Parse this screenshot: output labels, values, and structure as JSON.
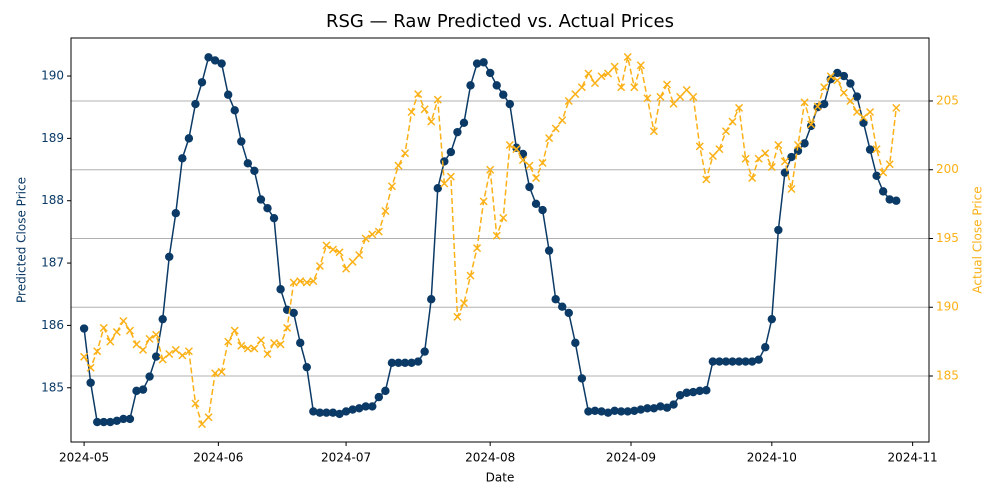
{
  "chart_data": {
    "type": "line",
    "title": "RSG — Raw Predicted vs. Actual Prices",
    "xlabel": "Date",
    "ylabel": "Predicted Close Price",
    "y2label": "Actual Close Price",
    "xlim": [
      -2,
      129
    ],
    "xticks": [
      {
        "value": 0,
        "label": "2024-05"
      },
      {
        "value": 20.5,
        "label": "2024-06"
      },
      {
        "value": 40,
        "label": "2024-07"
      },
      {
        "value": 62,
        "label": "2024-08"
      },
      {
        "value": 83.5,
        "label": "2024-09"
      },
      {
        "value": 105,
        "label": "2024-10"
      },
      {
        "value": 126.5,
        "label": "2024-11"
      }
    ],
    "ylim": [
      184.13,
      190.61
    ],
    "yticks": [
      185,
      186,
      187,
      188,
      189,
      190
    ],
    "y2lim": [
      180.2,
      209.58
    ],
    "y2ticks": [
      185,
      190,
      195,
      200,
      205
    ],
    "grid": "y2",
    "series": [
      {
        "name": "Predicted",
        "color": "#0b3a66",
        "axis": "y",
        "marker": "circle",
        "dash": false,
        "values": [
          185.95,
          185.08,
          184.45,
          184.45,
          184.45,
          184.47,
          184.5,
          184.5,
          184.95,
          184.97,
          185.18,
          185.5,
          186.1,
          187.1,
          187.8,
          188.68,
          189.0,
          189.55,
          189.9,
          190.3,
          190.25,
          190.2,
          189.7,
          189.45,
          188.95,
          188.6,
          188.48,
          188.02,
          187.88,
          187.72,
          186.58,
          186.25,
          186.2,
          185.72,
          185.33,
          184.62,
          184.6,
          184.6,
          184.6,
          184.58,
          184.62,
          184.65,
          184.67,
          184.7,
          184.7,
          184.85,
          184.95,
          185.4,
          185.4,
          185.4,
          185.4,
          185.42,
          185.58,
          186.42,
          188.2,
          188.63,
          188.78,
          189.1,
          189.25,
          189.85,
          190.2,
          190.22,
          190.05,
          189.85,
          189.7,
          189.55,
          188.85,
          188.75,
          188.22,
          187.95,
          187.85,
          187.2,
          186.42,
          186.3,
          186.2,
          185.72,
          185.15,
          184.62,
          184.63,
          184.62,
          184.6,
          184.63,
          184.62,
          184.62,
          184.63,
          184.65,
          184.67,
          184.67,
          184.7,
          184.68,
          184.73,
          184.88,
          184.92,
          184.93,
          184.95,
          184.96,
          185.42,
          185.42,
          185.42,
          185.42,
          185.42,
          185.42,
          185.42,
          185.45,
          185.65,
          186.1,
          187.53,
          188.45,
          188.7,
          188.8,
          188.92,
          189.2,
          189.5,
          189.55,
          189.95,
          190.05,
          190.0,
          189.88,
          189.67,
          189.25,
          188.82,
          188.4,
          188.15,
          188.02,
          188.0
        ]
      },
      {
        "name": "Actual",
        "color": "#fbb117",
        "axis": "y2",
        "marker": "x",
        "dash": true,
        "values": [
          186.4,
          185.6,
          186.8,
          188.5,
          187.5,
          188.2,
          189.0,
          188.3,
          187.3,
          186.9,
          187.7,
          188.0,
          186.2,
          186.6,
          186.9,
          186.5,
          186.8,
          183.0,
          181.5,
          182.0,
          185.2,
          185.3,
          187.5,
          188.3,
          187.2,
          187.0,
          187.0,
          187.6,
          186.6,
          187.4,
          187.3,
          188.5,
          191.8,
          191.9,
          191.8,
          191.9,
          193.0,
          194.5,
          194.2,
          194.0,
          192.8,
          193.3,
          193.8,
          195.0,
          195.3,
          195.5,
          197.0,
          198.8,
          200.3,
          201.2,
          204.2,
          205.5,
          204.4,
          203.5,
          205.1,
          199.0,
          199.5,
          189.3,
          190.3,
          192.3,
          194.3,
          197.7,
          200.0,
          195.2,
          196.5,
          201.8,
          201.5,
          200.7,
          200.3,
          199.4,
          200.5,
          202.3,
          203.0,
          203.6,
          205.0,
          205.5,
          206.0,
          207.0,
          206.3,
          206.8,
          207.0,
          207.5,
          206.0,
          208.2,
          206.0,
          207.6,
          205.2,
          202.8,
          205.3,
          206.2,
          204.8,
          205.3,
          205.8,
          205.3,
          201.7,
          199.3,
          201.0,
          201.5,
          202.8,
          203.5,
          204.5,
          200.8,
          199.4,
          200.8,
          201.2,
          200.2,
          201.8,
          200.6,
          198.6,
          201.8,
          204.9,
          203.3,
          204.6,
          206.0,
          206.8,
          206.5,
          205.6,
          205.0,
          204.2,
          203.8,
          204.2,
          201.5,
          199.8,
          200.4,
          204.5
        ]
      }
    ]
  }
}
